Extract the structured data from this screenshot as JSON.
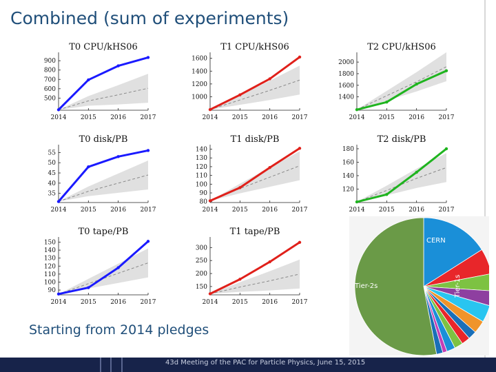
{
  "slide": {
    "title": "Combined (sum of experiments)",
    "subtitle": "Starting from 2014 pledges",
    "footer": "43d Meeting of the PAC for Particle Physics, June 15, 2015"
  },
  "chart_data": [
    {
      "type": "line",
      "title": "T0 CPU/kHS06",
      "color": "#1a1aff",
      "x": [
        2014,
        2015,
        2016,
        2017
      ],
      "xticks": [
        2014,
        2015,
        2016,
        2017
      ],
      "yticks": [
        500,
        600,
        700,
        800,
        900
      ],
      "ylim": [
        370,
        960
      ],
      "series": [
        {
          "values": [
            375,
            695,
            845,
            935
          ]
        },
        {
          "values": [
            375,
            470,
            535,
            605
          ]
        }
      ]
    },
    {
      "type": "line",
      "title": "T1 CPU/kHS06",
      "color": "#e0201a",
      "x": [
        2014,
        2015,
        2016,
        2017
      ],
      "xticks": [
        2014,
        2015,
        2016,
        2017
      ],
      "yticks": [
        1000,
        1200,
        1400,
        1600
      ],
      "ylim": [
        790,
        1650
      ],
      "series": [
        {
          "values": [
            800,
            1030,
            1280,
            1620
          ]
        },
        {
          "values": [
            800,
            950,
            1100,
            1260
          ]
        }
      ]
    },
    {
      "type": "line",
      "title": "T2 CPU/kHS06",
      "color": "#1fb41f",
      "x": [
        2014,
        2015,
        2016,
        2017
      ],
      "xticks": [
        2014,
        2015,
        2016,
        2017
      ],
      "yticks": [
        1400,
        1600,
        1800,
        2000
      ],
      "ylim": [
        1170,
        2120
      ],
      "series": [
        {
          "values": [
            1180,
            1310,
            1620,
            1850
          ]
        },
        {
          "values": [
            1180,
            1420,
            1660,
            1920
          ]
        }
      ]
    },
    {
      "type": "line",
      "title": "T0 disk/PB",
      "color": "#1a1aff",
      "x": [
        2014,
        2015,
        2016,
        2017
      ],
      "xticks": [
        2014,
        2015,
        2016,
        2017
      ],
      "yticks": [
        35,
        40,
        45,
        50,
        55
      ],
      "ylim": [
        30.5,
        57.5
      ],
      "series": [
        {
          "values": [
            31,
            48,
            53,
            56
          ]
        },
        {
          "values": [
            31,
            36,
            40,
            44
          ]
        }
      ]
    },
    {
      "type": "line",
      "title": "T1 disk/PB",
      "color": "#e0201a",
      "x": [
        2014,
        2015,
        2016,
        2017
      ],
      "xticks": [
        2014,
        2015,
        2016,
        2017
      ],
      "yticks": [
        80,
        90,
        100,
        110,
        120,
        130,
        140
      ],
      "ylim": [
        79,
        142
      ],
      "series": [
        {
          "values": [
            81,
            96,
            119,
            141
          ]
        },
        {
          "values": [
            81,
            95,
            108,
            121
          ]
        }
      ]
    },
    {
      "type": "line",
      "title": "T2 disk/PB",
      "color": "#1fb41f",
      "x": [
        2014,
        2015,
        2016,
        2017
      ],
      "xticks": [
        2014,
        2015,
        2016,
        2017
      ],
      "yticks": [
        120,
        140,
        160,
        180
      ],
      "ylim": [
        100,
        182
      ],
      "series": [
        {
          "values": [
            101,
            112,
            145,
            180
          ]
        },
        {
          "values": [
            101,
            118,
            136,
            152
          ]
        }
      ]
    },
    {
      "type": "line",
      "title": "T0 tape/PB",
      "color": "#1a1aff",
      "x": [
        2014,
        2015,
        2016,
        2017
      ],
      "xticks": [
        2014,
        2015,
        2016,
        2017
      ],
      "yticks": [
        90,
        100,
        110,
        120,
        130,
        140,
        150
      ],
      "ylim": [
        84,
        153
      ],
      "series": [
        {
          "values": [
            85,
            93,
            118,
            151
          ]
        },
        {
          "values": [
            85,
            98,
            111,
            124
          ]
        }
      ]
    },
    {
      "type": "line",
      "title": "T1 tape/PB",
      "color": "#e0201a",
      "x": [
        2014,
        2015,
        2016,
        2017
      ],
      "xticks": [
        2014,
        2015,
        2016,
        2017
      ],
      "yticks": [
        150,
        200,
        250,
        300
      ],
      "ylim": [
        118,
        330
      ],
      "series": [
        {
          "values": [
            122,
            178,
            245,
            320
          ]
        },
        {
          "values": [
            122,
            148,
            172,
            198
          ]
        }
      ]
    },
    {
      "type": "pie",
      "labels": [
        "Tier-2s",
        "CERN",
        "Tier-1s"
      ],
      "slices": [
        {
          "label": "CERN",
          "value": 16,
          "color": "#1a8fd8"
        },
        {
          "label": "",
          "value": 6,
          "color": "#e8262a"
        },
        {
          "label": "",
          "value": 4,
          "color": "#7dc242"
        },
        {
          "label": "",
          "value": 3.5,
          "color": "#8e3fa0"
        },
        {
          "label": "",
          "value": 4,
          "color": "#29c5f0"
        },
        {
          "label": "",
          "value": 3,
          "color": "#f0942a"
        },
        {
          "label": "",
          "value": 2,
          "color": "#1a6fb8"
        },
        {
          "label": "",
          "value": 2,
          "color": "#e8262a"
        },
        {
          "label": "",
          "value": 2,
          "color": "#7dc242"
        },
        {
          "label": "",
          "value": 2,
          "color": "#1a8fd8"
        },
        {
          "label": "",
          "value": 1,
          "color": "#c33fb5"
        },
        {
          "label": "",
          "value": 1.5,
          "color": "#1a6fb8"
        },
        {
          "label": "Tier-2s",
          "value": 53,
          "color": "#6a9a47"
        }
      ]
    }
  ]
}
